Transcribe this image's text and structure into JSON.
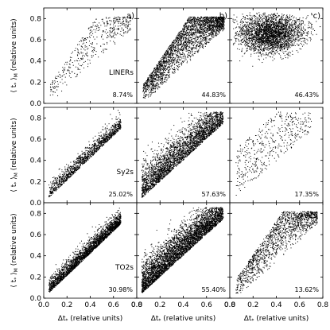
{
  "chart_data": {
    "type": "scatter",
    "layout": "3x3 grid of panels sharing axes",
    "grid": false,
    "legend": "none",
    "xlim": [
      0.0,
      0.8
    ],
    "ylim": [
      0.0,
      0.9
    ],
    "x_ticks": [
      "0.0",
      "0.2",
      "0.4",
      "0.6",
      "0.8"
    ],
    "y_ticks": [
      "0.0",
      "0.2",
      "0.4",
      "0.6",
      "0.8"
    ],
    "xlabel": {
      "main": "Δt",
      "sub": "*",
      "suffix": " (relative units)"
    },
    "ylabel": {
      "open": "⟨ t",
      "sub1": "*",
      "close": " ⟩",
      "sub2": "M",
      "suffix": " (relative units)"
    },
    "columns": [
      "a)",
      "b)",
      "c)"
    ],
    "rows": [
      "LINERs",
      "Sy2s",
      "TO2s"
    ],
    "panels": [
      {
        "row": 0,
        "col": 0,
        "percent": "8.74%",
        "shape": "wedge_broad",
        "n": 450
      },
      {
        "row": 0,
        "col": 1,
        "percent": "44.83%",
        "shape": "wedge_broad",
        "n": 2600
      },
      {
        "row": 0,
        "col": 2,
        "percent": "46.43%",
        "shape": "cloud_top",
        "n": 2800
      },
      {
        "row": 1,
        "col": 0,
        "percent": "25.02%",
        "shape": "diagonal",
        "n": 1300
      },
      {
        "row": 1,
        "col": 1,
        "percent": "57.63%",
        "shape": "diagonal_wide",
        "n": 2900
      },
      {
        "row": 1,
        "col": 2,
        "percent": "17.35%",
        "shape": "sparse",
        "n": 450
      },
      {
        "row": 2,
        "col": 0,
        "percent": "30.98%",
        "shape": "diagonal",
        "n": 2600
      },
      {
        "row": 2,
        "col": 1,
        "percent": "55.40%",
        "shape": "diagonal_wide",
        "n": 4200
      },
      {
        "row": 2,
        "col": 2,
        "percent": "13.62%",
        "shape": "wedge_broad",
        "n": 1400
      }
    ]
  }
}
